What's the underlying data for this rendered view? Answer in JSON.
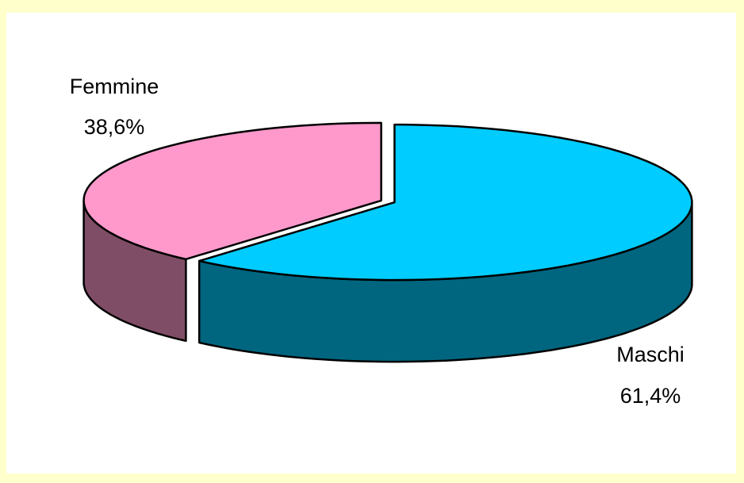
{
  "chart_data": {
    "type": "pie",
    "style": "3d-exploded",
    "title": "",
    "legend": "none",
    "slices": [
      {
        "name": "Maschi",
        "value": 61.4,
        "label": "61,4%",
        "color": "#00ccff",
        "side_color": "#006680"
      },
      {
        "name": "Femmine",
        "value": 38.6,
        "label": "38,6%",
        "color": "#ff99cc",
        "side_color": "#804d66"
      }
    ]
  }
}
